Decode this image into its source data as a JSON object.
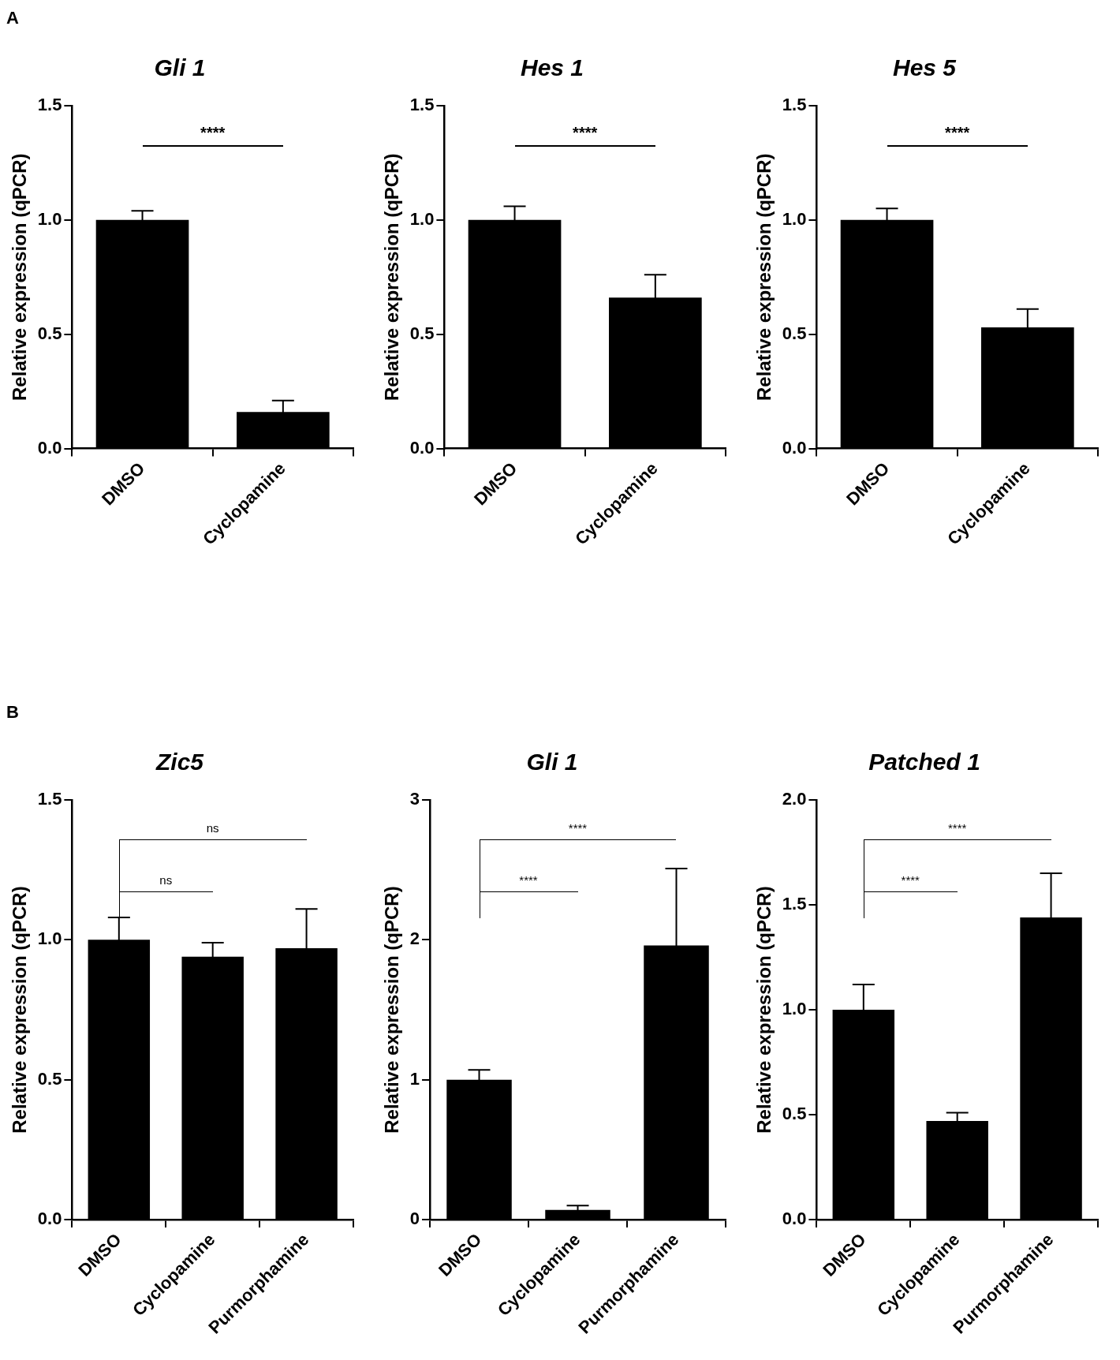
{
  "chart_data": [
    {
      "type": "bar",
      "title": "Gli 1",
      "ylabel": "Relative expression (qPCR)",
      "categories": [
        "DMSO",
        "Cyclopamine"
      ],
      "values": [
        1.0,
        0.16
      ],
      "errors": [
        0.04,
        0.05
      ],
      "color": "#000000",
      "ylim": [
        0,
        1.5
      ],
      "yticks": [
        {
          "value": 0,
          "label": "0.0"
        },
        0.5,
        {
          "value": 1,
          "label": "1.0"
        },
        1.5
      ],
      "annotations": [
        "A",
        "****"
      ]
    },
    {
      "type": "bar",
      "title": "Hes 1",
      "ylabel": "Relative expression (qPCR)",
      "categories": [
        "DMSO",
        "Cyclopamine"
      ],
      "values": [
        1.0,
        0.66
      ],
      "errors": [
        0.06,
        0.1
      ],
      "color": "#000000",
      "ylim": [
        0,
        1.5
      ],
      "yticks": [
        {
          "value": 0,
          "label": "0.0"
        },
        0.5,
        {
          "value": 1,
          "label": "1.0"
        },
        1.5
      ],
      "annotations": [
        "****"
      ]
    },
    {
      "type": "bar",
      "title": "Hes 5",
      "ylabel": "Relative expression (qPCR)",
      "categories": [
        "DMSO",
        "Cyclopamine"
      ],
      "values": [
        1.0,
        0.53
      ],
      "errors": [
        0.05,
        0.08
      ],
      "color": "#000000",
      "ylim": [
        0,
        1.5
      ],
      "yticks": [
        {
          "value": 0,
          "label": "0.0"
        },
        0.5,
        {
          "value": 1,
          "label": "1.0"
        },
        1.5
      ],
      "annotations": [
        "****"
      ]
    },
    {
      "type": "bar",
      "title": "Zic5",
      "ylabel": "Relative expression (qPCR)",
      "categories": [
        "DMSO",
        "Cyclopamine",
        "Purmorphamine"
      ],
      "values": [
        1.0,
        0.94,
        0.97
      ],
      "errors": [
        0.08,
        0.05,
        0.14
      ],
      "color": "#000000",
      "ylim": [
        0,
        1.5
      ],
      "yticks": [
        {
          "value": 0,
          "label": "0.0"
        },
        0.5,
        {
          "value": 1,
          "label": "1.0"
        },
        1.5
      ],
      "annotations": [
        "B",
        "ns",
        "ns"
      ]
    },
    {
      "type": "bar",
      "title": "Gli 1",
      "ylabel": "Relative expression (qPCR)",
      "categories": [
        "DMSO",
        "Cyclopamine",
        "Purmorphamine"
      ],
      "values": [
        1.0,
        0.07,
        1.96
      ],
      "errors": [
        0.07,
        0.03,
        0.55
      ],
      "color": "#000000",
      "ylim": [
        0,
        3
      ],
      "yticks": [
        0,
        1,
        2,
        3
      ],
      "annotations": [
        "****",
        "****"
      ]
    },
    {
      "type": "bar",
      "title": "Patched 1",
      "ylabel": "Relative expression (qPCR)",
      "categories": [
        "DMSO",
        "Cyclopamine",
        "Purmorphamine"
      ],
      "values": [
        1.0,
        0.47,
        1.44
      ],
      "errors": [
        0.12,
        0.04,
        0.21
      ],
      "color": "#000000",
      "ylim": [
        0,
        2
      ],
      "yticks": [
        {
          "value": 0,
          "label": "0.0"
        },
        0.5,
        {
          "value": 1,
          "label": "1.0"
        },
        1.5,
        {
          "value": 2,
          "label": "2.0"
        }
      ],
      "annotations": [
        "****",
        "****"
      ]
    }
  ]
}
